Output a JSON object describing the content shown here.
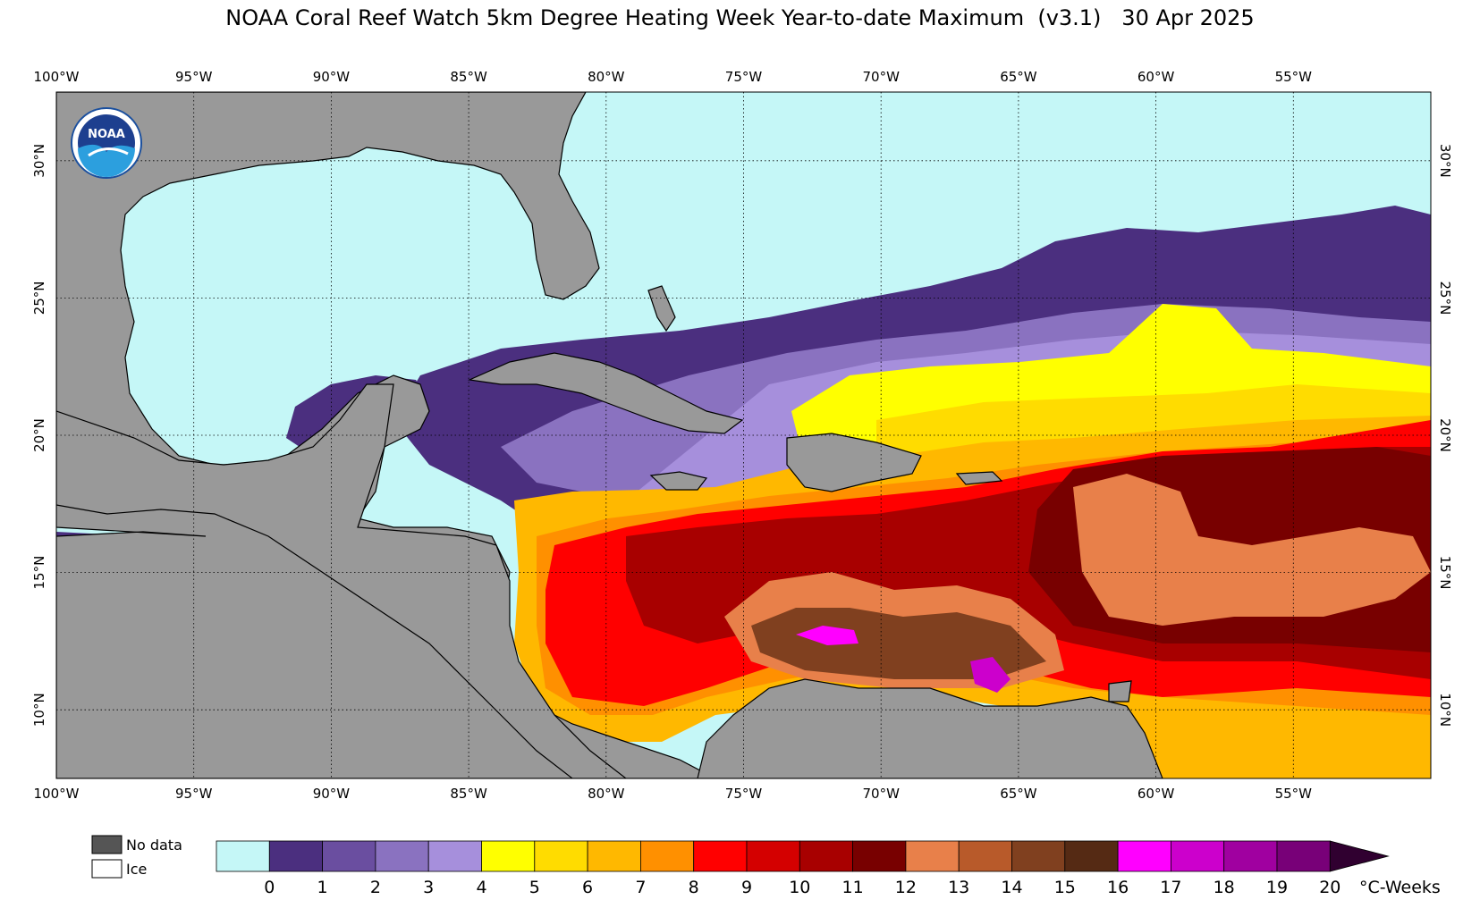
{
  "title": "NOAA Coral Reef Watch 5km Degree Heating Week Year-to-date Maximum  (v3.1)   30 Apr 2025",
  "map": {
    "lon_ticks": [
      "100°W",
      "95°W",
      "90°W",
      "85°W",
      "80°W",
      "75°W",
      "70°W",
      "65°W",
      "60°W",
      "55°W"
    ],
    "lat_ticks": [
      "30°N",
      "25°N",
      "20°N",
      "15°N",
      "10°N"
    ],
    "lon_range": [
      -100,
      -50
    ],
    "lat_range": [
      7.5,
      32.5
    ],
    "grid": true,
    "logo": "NOAA",
    "land_color": "#999999",
    "coast_color": "#000000"
  },
  "legend": {
    "no_data_label": "No data",
    "no_data_color": "#555555",
    "ice_label": "Ice",
    "ice_color": "#ffffff"
  },
  "colorbar": {
    "unit": "°C-Weeks",
    "labels": [
      "0",
      "1",
      "2",
      "3",
      "4",
      "5",
      "6",
      "7",
      "8",
      "9",
      "10",
      "11",
      "12",
      "13",
      "14",
      "15",
      "16",
      "17",
      "18",
      "19",
      "20"
    ],
    "colors": [
      "#c5f7f7",
      "#4b2f7f",
      "#6a4ea0",
      "#8a72c0",
      "#a68fdc",
      "#ffff00",
      "#ffdc00",
      "#ffb800",
      "#ff9000",
      "#ff0000",
      "#d40000",
      "#a80000",
      "#780000",
      "#e8804a",
      "#b85a2a",
      "#80401f",
      "#552a14",
      "#ff00ff",
      "#cc00cc",
      "#a000a0",
      "#780078"
    ],
    "extend_color": "#300030"
  }
}
